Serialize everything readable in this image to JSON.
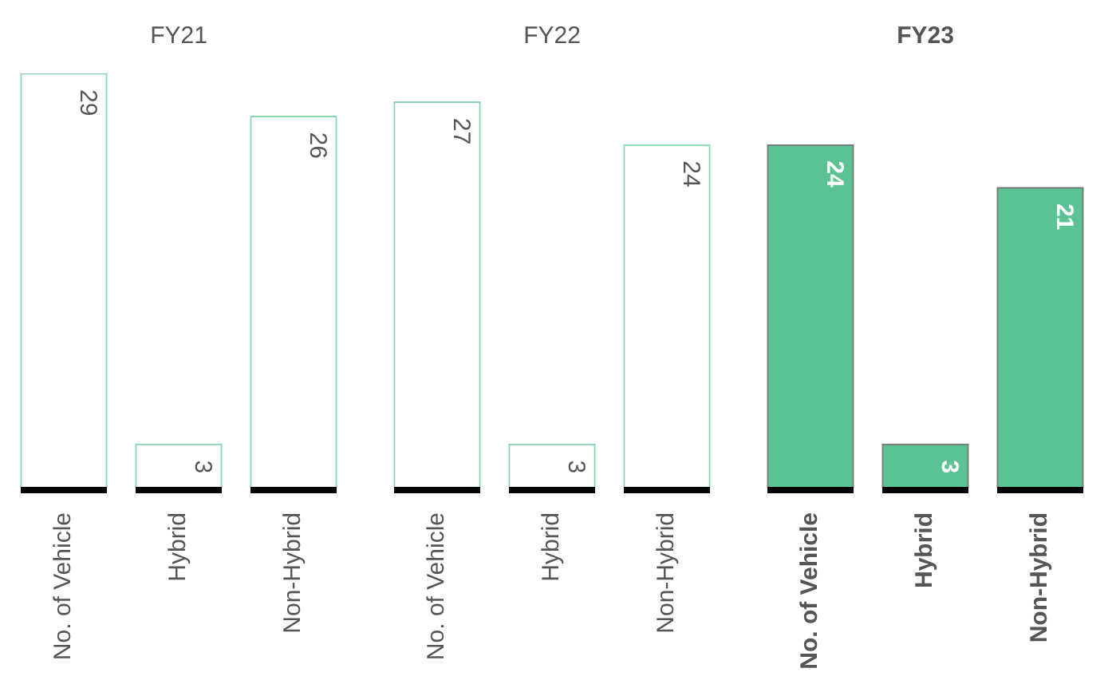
{
  "chart_data": [
    {
      "type": "bar",
      "title": "FY21",
      "categories": [
        "No. of Vehicle",
        "Hybrid",
        "Non-Hybrid"
      ],
      "values": [
        29,
        3,
        26
      ],
      "color": "#ffffff",
      "data_labels": true
    },
    {
      "type": "bar",
      "title": "FY22",
      "categories": [
        "No. of Vehicle",
        "Hybrid",
        "Non-Hybrid"
      ],
      "values": [
        27,
        3,
        24
      ],
      "color": "#ffffff",
      "data_labels": true
    },
    {
      "type": "bar",
      "title": "FY23",
      "categories": [
        "No. of Vehicle",
        "Hybrid",
        "Non-Hybrid"
      ],
      "values": [
        24,
        3,
        21
      ],
      "color": "#5bc393",
      "data_labels": true
    }
  ]
}
